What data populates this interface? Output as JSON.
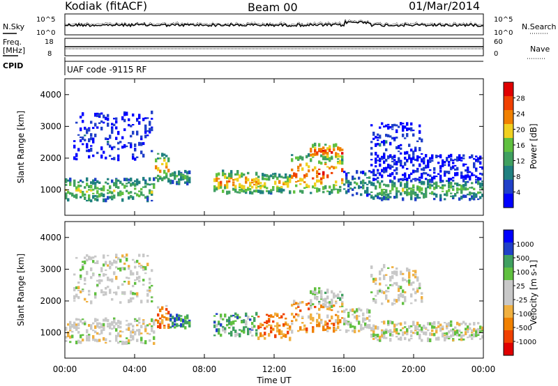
{
  "header": {
    "station": "Kodiak (fitACF)",
    "beam": "Beam 00",
    "date": "01/Mar/2014"
  },
  "strip_labels": {
    "nsky": "N.Sky",
    "nsearch": "N.Search",
    "freq_line1": "Freq.",
    "freq_line2": "[MHz]",
    "cpid": "CPID",
    "nave": "Nave",
    "program": "UAF code -9115 RF"
  },
  "colors": {
    "power": [
      "#0000ff",
      "#2040c8",
      "#208080",
      "#40a060",
      "#60c040",
      "#f0d020",
      "#f08000",
      "#f04000",
      "#e00000"
    ],
    "velocity": [
      "#e00000",
      "#f04000",
      "#f08000",
      "#f0b040",
      "#c8c8c8",
      "#c8c8c8",
      "#60c040",
      "#40a060",
      "#2040c8",
      "#0000ff"
    ]
  },
  "chart_data": [
    {
      "type": "line",
      "title": "N.Sky / N.Search",
      "yticks": [
        "10^5",
        "10^0"
      ],
      "yticks_right": [
        "10^5",
        "10^0"
      ]
    },
    {
      "type": "line",
      "title": "Freq. / Nave",
      "yticks": [
        "18",
        "8"
      ],
      "yticks_right": [
        "60",
        "0"
      ]
    },
    {
      "type": "heatmap",
      "xlabel": "",
      "ylabel": "Slant Range [km]",
      "yticks": [
        "1000",
        "2000",
        "3000",
        "4000"
      ],
      "ylim": [
        200,
        4500
      ],
      "xlim": [
        0,
        24
      ],
      "colorbar_label": "Power [dB]",
      "colorbar_ticks": [
        "4",
        "8",
        "12",
        "16",
        "20",
        "24",
        "28"
      ],
      "colorbar_range": [
        0,
        30
      ],
      "bands": [
        {
          "t0": 0.0,
          "t1": 5.2,
          "r_center": 1000,
          "r_width": 700,
          "level": 0.55
        },
        {
          "t0": 0.5,
          "t1": 5.0,
          "r_center": 2700,
          "r_width": 1500,
          "level": 0.15
        },
        {
          "t0": 5.2,
          "t1": 6.0,
          "r_center": 1700,
          "r_width": 900,
          "level": 0.7
        },
        {
          "t0": 6.0,
          "t1": 7.2,
          "r_center": 1400,
          "r_width": 400,
          "level": 0.45
        },
        {
          "t0": 8.5,
          "t1": 11.0,
          "r_center": 1250,
          "r_width": 700,
          "level": 0.75
        },
        {
          "t0": 11.0,
          "t1": 13.0,
          "r_center": 1200,
          "r_width": 600,
          "level": 0.7
        },
        {
          "t0": 13.0,
          "t1": 16.0,
          "r_center": 1500,
          "r_width": 1200,
          "level": 0.85
        },
        {
          "t0": 14.0,
          "t1": 16.0,
          "r_center": 2200,
          "r_width": 500,
          "level": 0.9
        },
        {
          "t0": 16.0,
          "t1": 17.5,
          "r_center": 1200,
          "r_width": 800,
          "level": 0.35
        },
        {
          "t0": 17.5,
          "t1": 24.0,
          "r_center": 1000,
          "r_width": 600,
          "level": 0.5
        },
        {
          "t0": 17.5,
          "t1": 20.5,
          "r_center": 2500,
          "r_width": 1200,
          "level": 0.15
        },
        {
          "t0": 17.5,
          "t1": 24.0,
          "r_center": 1700,
          "r_width": 800,
          "level": 0.1
        }
      ]
    },
    {
      "type": "heatmap",
      "xlabel": "Time UT",
      "ylabel": "Slant Range [km]",
      "xticks": [
        "00:00",
        "04:00",
        "08:00",
        "12:00",
        "16:00",
        "20:00",
        "00:00"
      ],
      "yticks": [
        "1000",
        "2000",
        "3000",
        "4000"
      ],
      "ylim": [
        200,
        4500
      ],
      "xlim": [
        0,
        24
      ],
      "colorbar_label": "Velocity [m s-1]",
      "colorbar_ticks": [
        "1000",
        "500",
        "100",
        "25",
        "-25",
        "-100",
        "-500",
        "-1000"
      ],
      "bands": [
        {
          "t0": 0.0,
          "t1": 5.2,
          "r_center": 1050,
          "r_width": 800,
          "level": 0.5
        },
        {
          "t0": 0.5,
          "t1": 5.0,
          "r_center": 2700,
          "r_width": 1500,
          "level": 0.5
        },
        {
          "t0": 5.2,
          "t1": 6.0,
          "r_center": 1500,
          "r_width": 700,
          "level": 0.3
        },
        {
          "t0": 6.0,
          "t1": 7.2,
          "r_center": 1350,
          "r_width": 400,
          "level": 0.75
        },
        {
          "t0": 8.5,
          "t1": 11.0,
          "r_center": 1250,
          "r_width": 700,
          "level": 0.7
        },
        {
          "t0": 11.0,
          "t1": 13.0,
          "r_center": 1200,
          "r_width": 800,
          "level": 0.25
        },
        {
          "t0": 13.0,
          "t1": 16.0,
          "r_center": 1500,
          "r_width": 1000,
          "level": 0.3
        },
        {
          "t0": 14.0,
          "t1": 16.0,
          "r_center": 2100,
          "r_width": 600,
          "level": 0.6
        },
        {
          "t0": 16.0,
          "t1": 17.5,
          "r_center": 1400,
          "r_width": 700,
          "level": 0.5
        },
        {
          "t0": 17.5,
          "t1": 24.0,
          "r_center": 1050,
          "r_width": 600,
          "level": 0.5
        },
        {
          "t0": 17.5,
          "t1": 20.5,
          "r_center": 2500,
          "r_width": 1200,
          "level": 0.5
        }
      ]
    }
  ]
}
